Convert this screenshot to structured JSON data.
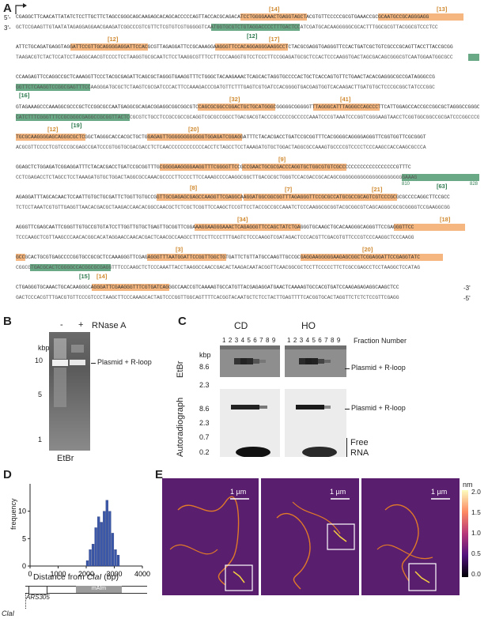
{
  "panels": {
    "A": "A",
    "B": "B",
    "C": "C",
    "D": "D",
    "E": "E"
  },
  "panelA": {
    "prime5_top": "5'-",
    "prime3_top": "-3'",
    "prime3_bottom": "3'-",
    "prime5_bottom": "-5'",
    "line1_top": "CGAGGCTTCAACATTATATCTCCTTGCTTCTAGCCGGGCAGCAAGAGCACAGCACCCCCAGTTACCACGCAGACATCCTGGGGAAACTGAGGTAGCTACGTGTTCCCCCGCGTGAAACCGCGCAATGCCGCAGGGAGG",
    "line1_bot": "GCTCCGAAGTTGTAATATAGAGGAGGAACGAAGATCGGCCCGTCGTTCTCGTGTCGTGGGGGTCAATGGTGCGTCTGTAGGACCCCTTTGACTCCATCGATGCACAAGGGGGCGCACTTTGGCGCGTTACGGCGTCCCTCC",
    "line2_top": "ATTCTGCAGATGAGGTAGGATTCCGTTGCAGGGGAGGATTCCACGCGTTAGAGGATTCCGCAAAGGAAGGGTTCCACAGGAGGGAAGGCCTCTACGCGAGGTGAGGGTTCCACTGATCGCTGTCGCCCGCAGTTACCTTACCGCGG",
    "line2_bot": "TAAGACGTCTACTCCATCCTAAGGCAACGTCCCCTCCTAAGGTGCGCAATCTCCTAAGGCGTTTCCTTCCCAAGGTGTCCTCCCTTCCGGAGATGCGCTCCACTCCCAAGGTGACTAGCGACAGCGGGCGTCAATGGAATGGCGCC",
    "line3_top": "CCAAGAGTTCCAGGCCGCTCAAAGGTTCCCTACGCGAGATTCAGCGCTAGGGTGAAGGTTTCTGGGCTACAAGAAACTCAGCACTAGGTGCCCCACTGCTCACCAGTGTTCTGAACTACACGAGGGCGCCGATAGGGCCG",
    "line3_bot": "GGTTCTCAAGGTCCGGCGAGTTTCCAAGGGATGCGCTCTAAGTCGCGATCCCACTTCCAAAGACCCGATGTTCTTTGAGTCGTGATCCACGGGGTGACGAGTGGTCACAAGACTTGATGTGCTCCCGCGGCTATCCCGGC",
    "line4_top": "GTAGAAAGCCCAAAGGCGCCCGCTCCGGCGCCAATGAGGCGCAGACGGAGGCGGCGGCGTCCAGCGCGGCCGGACTGCTGCATGGGCGGGGGCGGGGGTTTAGGGCATTTAGGGCCAGCCCTTCATTGGAGCCACCGCCGGCGCTAGGGCCGGGCGCCACCGCCGCC",
    "line4_bot": "CATCTTTCGGGTTTCCGCGGGCGAGGCCGCGGTTACTCCGCGTCTGCCTCCGCCGCCGCAGGTCGCGCCGGCCTGACGACGTACCCGCCCCCGCCCCCAAATCCCGTAAATCCCGGTCGGGAAGTAACCTCGGTGGCGGCCGCGATCCCGGCCCGCGGTGGCGGCGG",
    "line5_top": "TGCGCAAGGGGAGCAGGGCGCTCGGCTAGGGCACCACGCTGCTGGAGAGTTGGGGGGGGGGGGTGGAGATCGGAGGATTTCTACACGACCTGATCCGCGGTTTCACGGGGCAGGGGAGGGTTCGGTGGTTCGCGGGT",
    "line5_bot": "ACGCGTTCCCCTCGTCCCGCGAGCCGATCCCGTGGTGCGACGACCTCTCAACCCCCCCCCCCCACCTCTAGCCTCCTAAAGATGTGCTGGACTAGGCGCCAAAGTGCCCCGTCCCCTCCCAAGCCACCAAGCGCCCA",
    "line6_top": "GGAGCTCTGGAGATCGGAGGATTTCTACACGACCTGATCCGCGGTTTGCGGGGAAGGGGAAGGTTTCGGGGTTCCGCCGAACTGCGCGACCCAGGTGCTGGCGTGTCGCCCCCCCCCCCCCCCCCCCGTTTC",
    "line6_bot": "CCTCGAGACCTCTAGCCTCCTAAAGATGTGCTGGACTAGGCGCCAAACGCCCCTTCCCCTTCCAAAGCCCCAAGGCGGCTTGACGCGCTGGGTCCACGACCGCACAGCGGGGGGGGGGGGGGGGGGGGGGAAAG",
    "line7_top": "AGAGGATTTAGCACAACTCCAATTGTGCTGCGATTCTGGTTGTGCCGGTTGCGAGAGCGAGCCAAGGTTCGAGGCAAGGATGGCGGCGGTTTAGAGGGTTCCGCGCCATGCGCCGCAGTCGTCCCGCGCGCCCCAGGCTTCCGCC",
    "line7_bot": "TCTCCTAAATCGTGTTGAGGTTAACACGACGCTAAGACCAACACGGCCAACGCTCTCGCTCGGTTCCAAGCTCCGTTCCTACCGCCGCCAAATCTCCCAAGGCGCGGTACGCGGCGTCAGCAGGGCGCGCGGGGTCCGAAGGCGG",
    "line8_top": "AGGGTTCGAGCAATTCGGGTTGTGCCGTGTATCCTTGGTTGTGCTGAGTTGCGGTTCGGAAAGGAAGGGAAACTCAGAGGGTTCCAGCTATCTGAGGGTGCAAGCTGCACAAGGGCAGGGTTCCGAGGGTTCC",
    "line8_bot": "TCCCAAGCTCGTTAAGCCCAACACGGCACATAGGAACCAACACGACTCAACGCCAAGCCTTTCCTTCCCTTTGAGTCTCCCAAGGTCGATAGACTCCCACGTTCGACGTGTTCCCGTCCCAAGGCTCCCAAGG",
    "line9_top": "GCCGCACTGCGTGAGCCCCGGTGCCGCGCTCCAAAGGGTTCGAGAGGGTTTAATGGATTCCGGTTGGCTGTGATTCTGTTATGCCAAGTTGCCGCGAGGAAGGGGGAAGAGCGGCTCGGAGGATTCCGAGGTATC",
    "line9_bot": "CGGCGTGACGCACTCGGGGCCACGGCGCGAGGTTTCCCAAGCTCTCCCAAATTACCTAAGGCCAACCGACACTAAGACAATACGGTTCAACGGCGCTCCTTCCCCCTTCTCGCCGAGCCTCCTAAGGCTCCATAG",
    "line10_top": "CTGAGGGTGCAAACTGCACAAGGGCAGGGATTCGAAGGGTTTCGTGATCAGGGCCAACCGTCAAAAGTGCCATGTTACGAGAGGATGAACTCAAAAGTGCCACGTGATCCAAGAGAGAGGCAAGCTCC",
    "line10_bot": "GACTCCCACGTTTGACGTGTTCCCGTCCCTAAGCTTCCCAAAGCACTAGTCCCGGTTGGCAGTTTTCACGGTACAATGCTCTCCTACTTGAGTTTTCACGGTGCACTAGGTTCTCTCTCCGTTCGAGG",
    "labels_orange": [
      "[14]",
      "[13]",
      "[12]",
      "[17]",
      "[32]",
      "[41]",
      "[12]",
      "[20]",
      "[9]",
      "[8]",
      "[7]",
      "[21]",
      "[34]",
      "[18]",
      "[3]",
      "[20]",
      "[14]"
    ],
    "labels_green": [
      "[12]",
      "[16]",
      "[19]",
      "[63]",
      "[15]"
    ],
    "pos_810": "810",
    "pos_828": "828"
  },
  "panelB": {
    "minus": "-",
    "plus": "+",
    "rnase": "RNase A",
    "kbp": "kbp",
    "ladder": [
      "10",
      "5",
      "1"
    ],
    "band_label": "Plasmid + R-loop",
    "stain": "EtBr"
  },
  "panelC": {
    "cd": "CD",
    "ho": "HO",
    "fraction_numbers": [
      "1",
      "2",
      "3",
      "4",
      "5",
      "6",
      "7",
      "8",
      "9"
    ],
    "fraction_label": "Fraction Number",
    "kbp": "kbp",
    "etbr_ticks": [
      "8.6",
      "2.3"
    ],
    "etbr": "EtBr",
    "band_label": "Plasmid + R-loop",
    "auto_ticks": [
      "8.6",
      "2.3",
      "0.7",
      "0.2"
    ],
    "autoradiograph": "Autoradiograph",
    "band_label2": "Plasmid + R-loop",
    "free_rna_1": "Free",
    "free_rna_2": "RNA"
  },
  "panelD": {
    "chart_data": {
      "type": "bar",
      "x": [
        2050,
        2150,
        2250,
        2350,
        2450,
        2550,
        2650,
        2750,
        2850,
        2950,
        3050,
        3150
      ],
      "values": [
        1,
        3,
        4,
        7,
        9,
        8,
        10,
        12,
        10,
        6,
        3,
        2
      ],
      "xlabel": "Distance from ClaI (bp)",
      "ylabel": "frequency",
      "xticks": [
        "0",
        "1000",
        "2000",
        "3000",
        "4000"
      ],
      "yticks": [
        "0",
        "5",
        "10"
      ],
      "xlim": [
        0,
        4000
      ],
      "ylim": [
        0,
        15
      ],
      "color": "#3b57a8"
    },
    "map_ars": "ARS305",
    "map_maim": "mAIm",
    "map_cla": "ClaI"
  },
  "panelE": {
    "scale_1": "1 µm",
    "scale_2": "1 µm",
    "scale_3": "1 µm",
    "colorbar_unit": "nm",
    "colorbar_ticks": [
      "2.0",
      "1.5",
      "1.0",
      "0.5",
      "0.0"
    ]
  }
}
